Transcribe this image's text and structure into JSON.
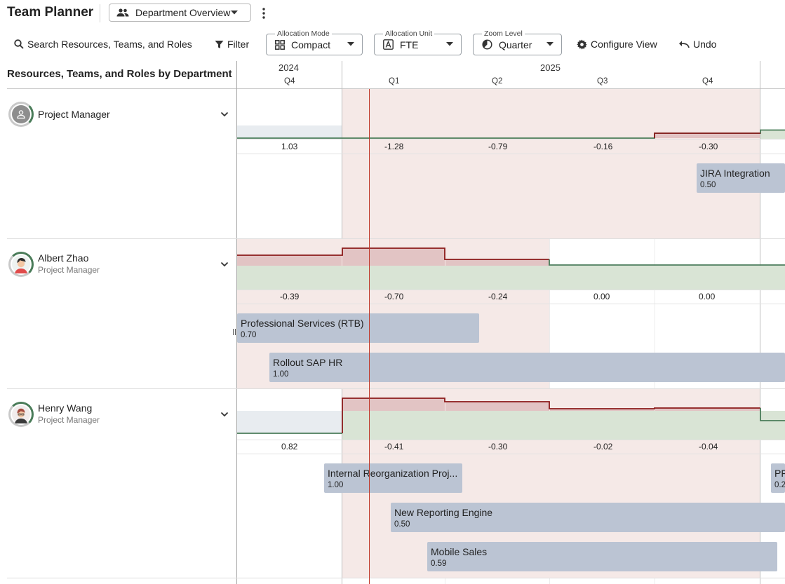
{
  "app": {
    "title": "Team Planner"
  },
  "view_selector": {
    "label": "Department Overview",
    "icon": "people-icon"
  },
  "toolbar": {
    "search_label": "Search Resources, Teams, and Roles",
    "filter_label": "Filter",
    "allocation_mode": {
      "label": "Allocation Mode",
      "value": "Compact"
    },
    "allocation_unit": {
      "label": "Allocation Unit",
      "value": "FTE"
    },
    "zoom_level": {
      "label": "Zoom Level",
      "value": "Quarter"
    },
    "configure_label": "Configure View",
    "undo_label": "Undo"
  },
  "left_header": "Resources, Teams, and Roles by Department",
  "timeline": {
    "years": [
      "2024",
      "2025"
    ],
    "quarters": [
      "Q4",
      "Q1",
      "Q2",
      "Q3",
      "Q4"
    ]
  },
  "colors": {
    "over": "#e2c4c4",
    "under": "#d9e4d5",
    "bar": "#bbc4d3",
    "today_line": "#c0392b",
    "over_line": "#8b1a1a",
    "under_line": "#4a7c59"
  },
  "resources": [
    {
      "name": "Project Manager",
      "role": "",
      "values": [
        "1.03",
        "-1.28",
        "-0.79",
        "-0.16",
        "-0.30"
      ],
      "assignments": [
        {
          "name": "JIRA Integration",
          "fte": "0.50"
        }
      ]
    },
    {
      "name": "Albert Zhao",
      "role": "Project Manager",
      "values": [
        "-0.39",
        "-0.70",
        "-0.24",
        "0.00",
        "0.00"
      ],
      "assignments": [
        {
          "name": "Professional Services (RTB)",
          "fte": "0.70"
        },
        {
          "name": "Rollout SAP HR",
          "fte": "1.00"
        }
      ]
    },
    {
      "name": "Henry Wang",
      "role": "Project Manager",
      "values": [
        "0.82",
        "-0.41",
        "-0.30",
        "-0.02",
        "-0.04"
      ],
      "assignments": [
        {
          "name": "Internal Reorganization Proj...",
          "fte": "1.00"
        },
        {
          "name": "New Reporting Engine",
          "fte": "0.50"
        },
        {
          "name": "Mobile Sales",
          "fte": "0.59"
        },
        {
          "name": "PF",
          "fte": "0.2"
        }
      ]
    }
  ]
}
